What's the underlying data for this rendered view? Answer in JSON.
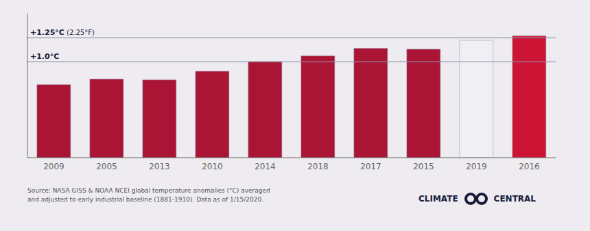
{
  "chart_data": {
    "type": "bar",
    "categories": [
      "2009",
      "2005",
      "2013",
      "2010",
      "2014",
      "2018",
      "2017",
      "2015",
      "2019",
      "2016"
    ],
    "values": [
      0.76,
      0.82,
      0.81,
      0.9,
      1.0,
      1.06,
      1.14,
      1.13,
      1.22,
      1.27
    ],
    "colors": [
      "#aa1535",
      "#aa1535",
      "#aa1535",
      "#aa1535",
      "#aa1535",
      "#aa1535",
      "#aa1535",
      "#aa1535",
      "#f0eff4",
      "#cc1535"
    ],
    "ylim": [
      0.0,
      1.5
    ],
    "tick_labels": "x",
    "grid": false,
    "reference_lines": [
      {
        "value": 1.25,
        "label": "+1.25°C",
        "note": "(2.25°F)"
      },
      {
        "value": 1.0,
        "label": "+1.0°C"
      }
    ],
    "source": "Source: NASA GISS & NOAA NCEI global temperature anomalies (°C) averaged\nand adjusted to early industrial baseline (1881-1910). Data as of 1/15/2020.",
    "annotations": [
      "CLIMATE",
      "CENTRAL"
    ]
  }
}
